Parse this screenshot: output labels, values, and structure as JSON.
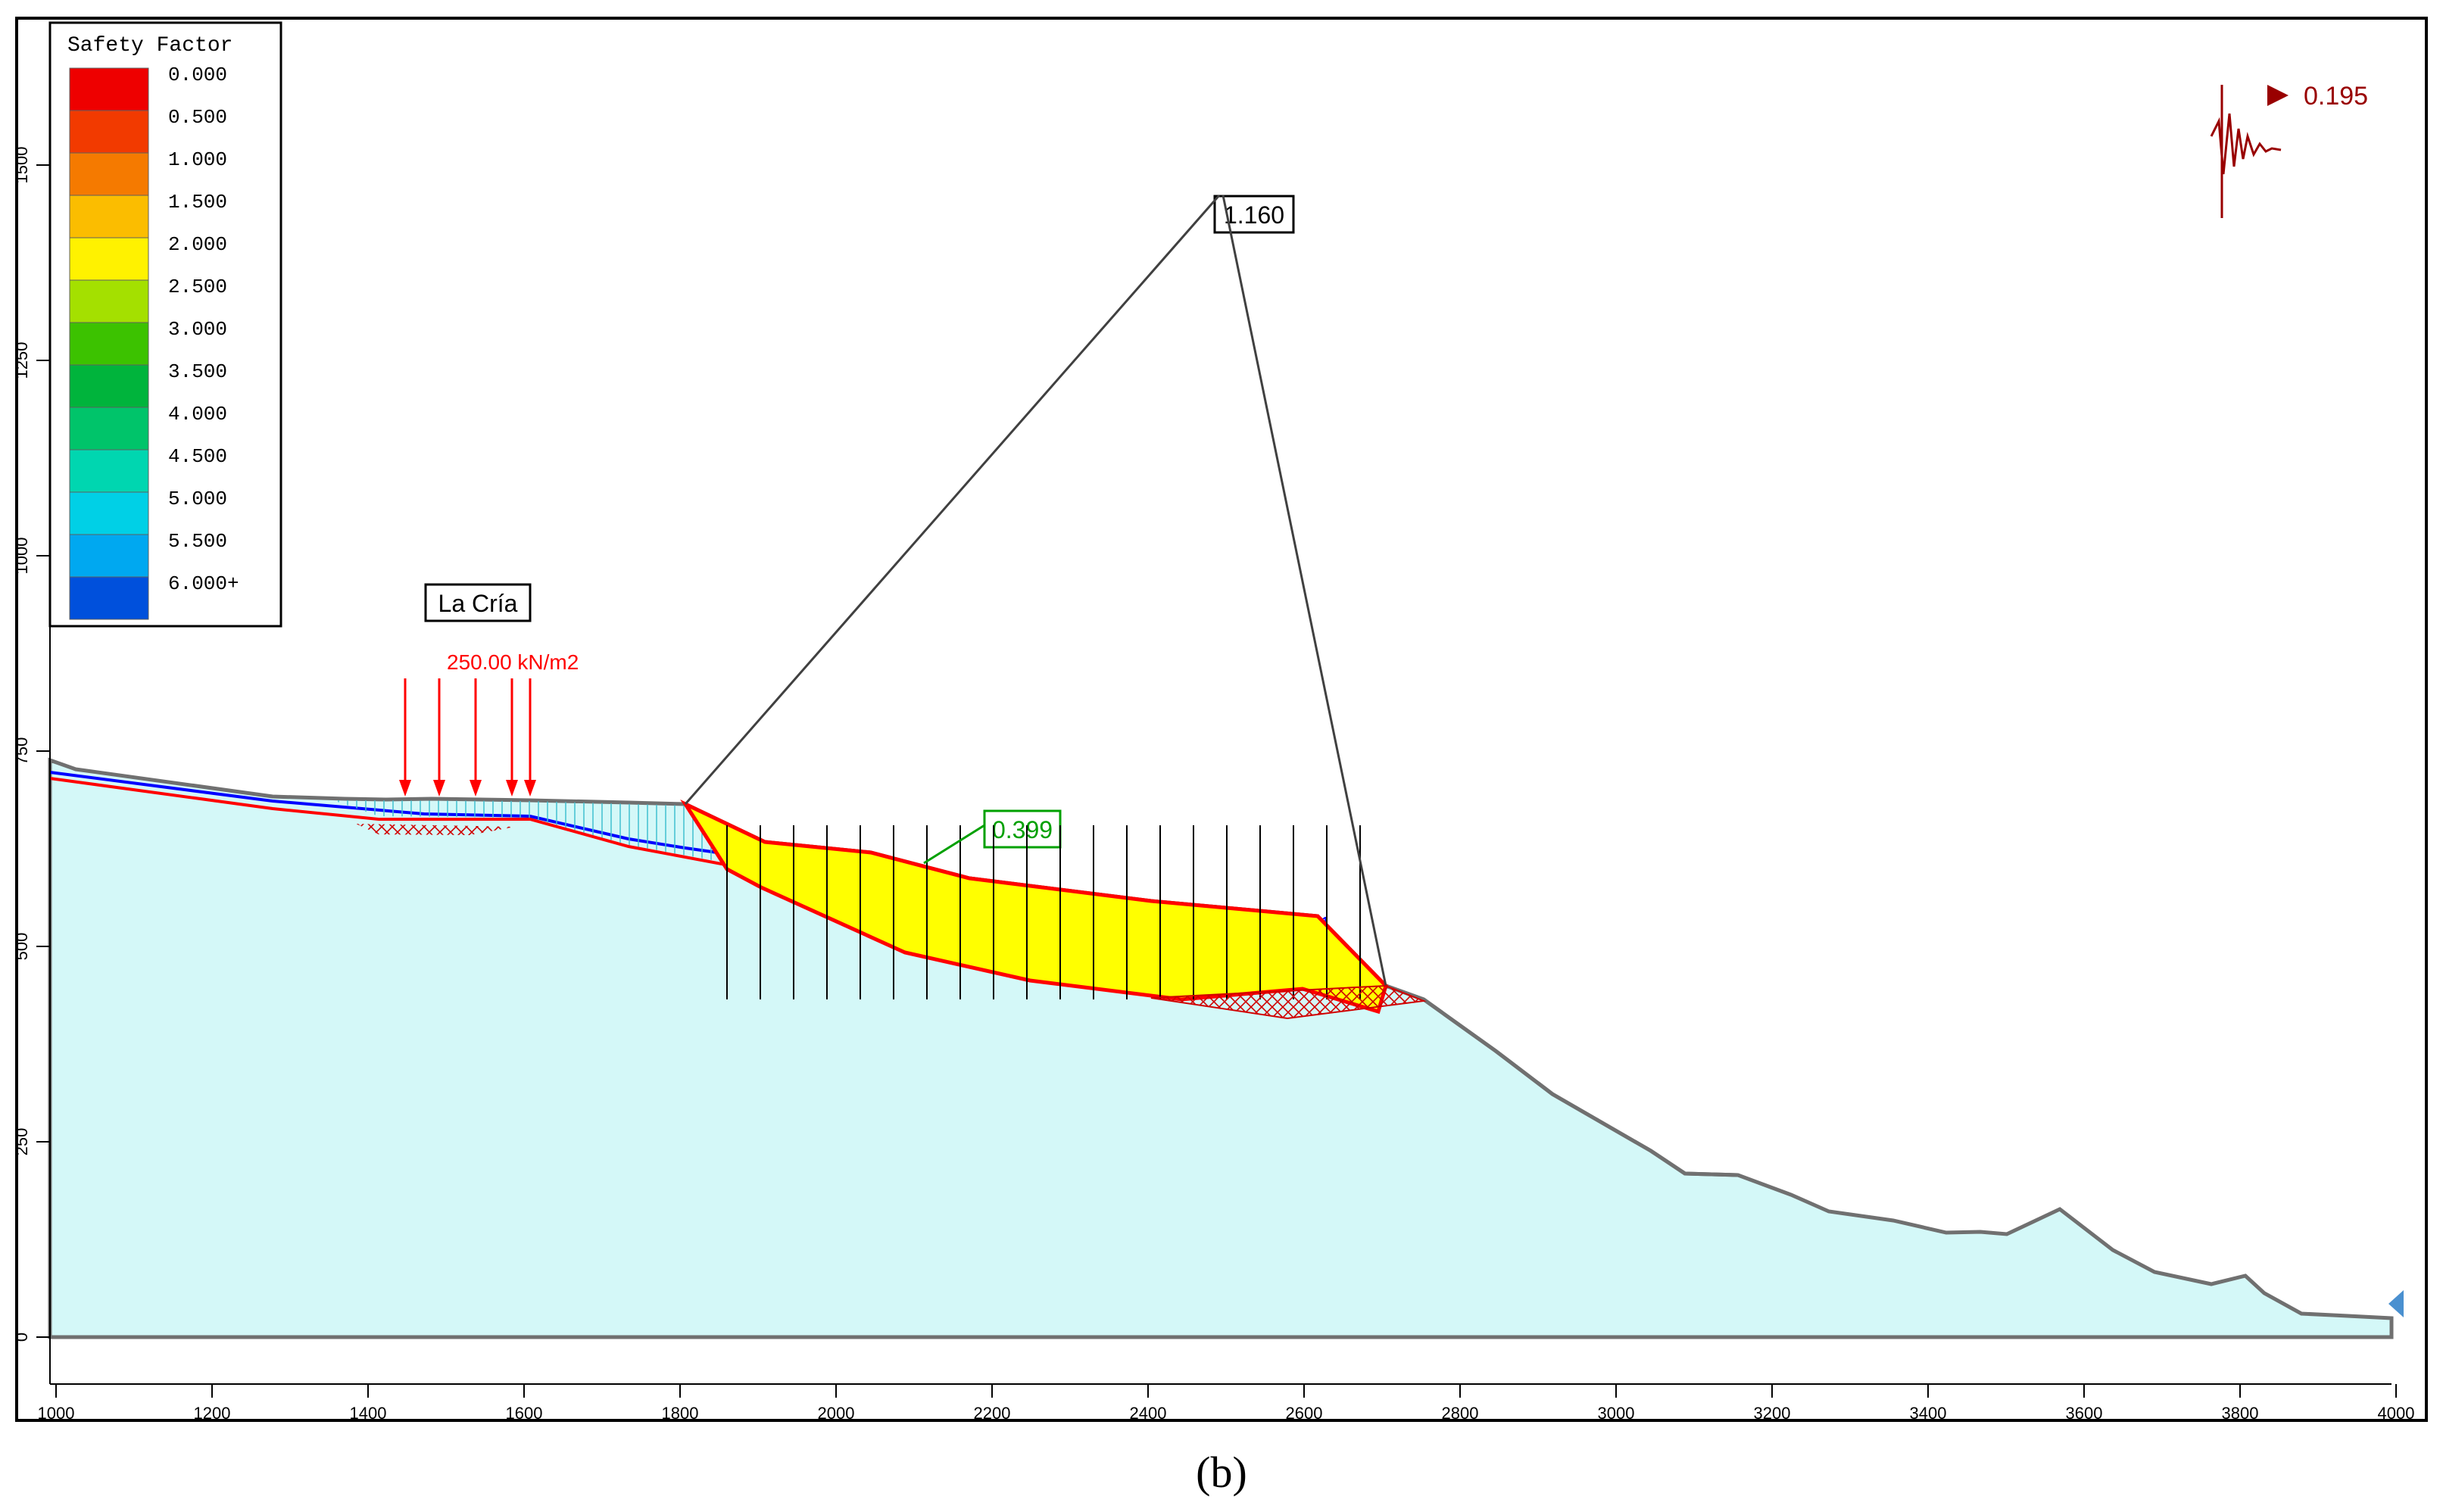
{
  "legend": {
    "title": "Safety Factor",
    "entries": [
      {
        "label": "0.000",
        "color": "#ee0000"
      },
      {
        "label": "0.500",
        "color": "#f23a00"
      },
      {
        "label": "1.000",
        "color": "#f57a00"
      },
      {
        "label": "1.500",
        "color": "#fbbd00"
      },
      {
        "label": "2.000",
        "color": "#fff200"
      },
      {
        "label": "2.500",
        "color": "#a4e000"
      },
      {
        "label": "3.000",
        "color": "#3cc200"
      },
      {
        "label": "3.500",
        "color": "#00b43c"
      },
      {
        "label": "4.000",
        "color": "#00c46a"
      },
      {
        "label": "4.500",
        "color": "#00d6b0"
      },
      {
        "label": "5.000",
        "color": "#00d0e6"
      },
      {
        "label": "5.500",
        "color": "#00a8f0"
      },
      {
        "label": "6.000+",
        "color": "#0050dc"
      }
    ]
  },
  "axes": {
    "x_ticks": [
      "1000",
      "1200",
      "1400",
      "1600",
      "1800",
      "2000",
      "2200",
      "2400",
      "2600",
      "2800",
      "3000",
      "3200",
      "3400",
      "3600",
      "3800",
      "4000"
    ],
    "y_ticks": [
      "0",
      "250",
      "500",
      "750",
      "1000",
      "1250",
      "1500"
    ]
  },
  "labels": {
    "site_name": "La Cría",
    "load": "250.00 kN/m2",
    "min_circle_fs": "1.160",
    "slip_fs": "0.399",
    "seismic_coefficient": "0.195",
    "water_marker": "1",
    "panel": "(b)"
  },
  "colors": {
    "ground": "#d4f8f8",
    "slip_mass": "#ffff00",
    "slip_surface": "#ff0000",
    "water_line": "#0000ff",
    "load_arrow": "#ff0000",
    "seismic": "#990000",
    "fs_green": "#00a000"
  }
}
